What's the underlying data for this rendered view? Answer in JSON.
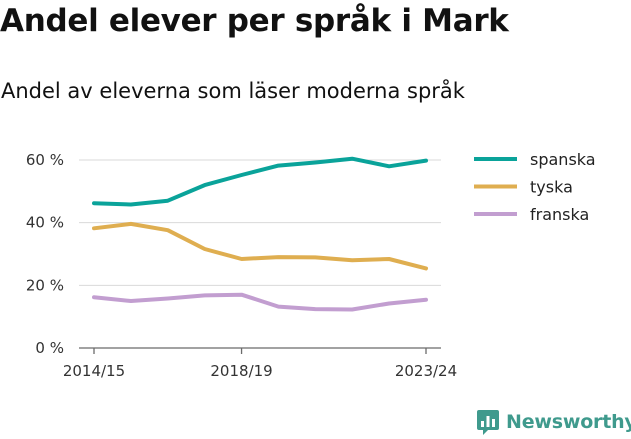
{
  "title": "Andel elever per språk i Mark",
  "subtitle": "Andel av eleverna som läser moderna språk",
  "brand": {
    "name": "Newsworthy",
    "icon": "newsworthy-logo-icon"
  },
  "chart_data": {
    "type": "line",
    "x": [
      "2014/15",
      "2015/16",
      "2016/17",
      "2017/18",
      "2018/19",
      "2019/20",
      "2020/21",
      "2021/22",
      "2022/23",
      "2023/24"
    ],
    "xtick_labels": [
      "2014/15",
      "2018/19",
      "2023/24"
    ],
    "ytick_labels": [
      "0 %",
      "20 %",
      "40 %",
      "60 %"
    ],
    "ylim": [
      0,
      65
    ],
    "yticks": [
      0,
      20,
      40,
      60
    ],
    "grid": true,
    "legend_position": "right",
    "series": [
      {
        "name": "spanska",
        "color": "#0aa39a",
        "values": [
          46.2,
          45.8,
          47.0,
          52.0,
          55.2,
          58.2,
          59.2,
          60.4,
          58.0,
          59.8
        ]
      },
      {
        "name": "tyska",
        "color": "#dfae50",
        "values": [
          38.2,
          39.6,
          37.6,
          31.6,
          28.4,
          29.0,
          28.9,
          28.0,
          28.4,
          25.4
        ]
      },
      {
        "name": "franska",
        "color": "#c29ed0",
        "values": [
          16.2,
          15.0,
          15.8,
          16.8,
          17.0,
          13.2,
          12.4,
          12.3,
          14.2,
          15.4
        ]
      }
    ]
  }
}
